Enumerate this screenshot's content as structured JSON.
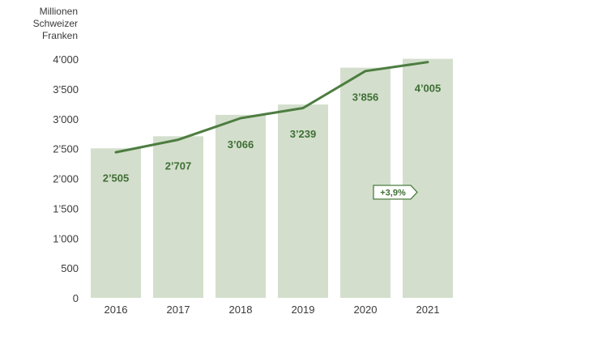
{
  "chart_data": {
    "type": "bar",
    "ylabel": [
      "Millionen",
      "Schweizer",
      "Franken"
    ],
    "categories": [
      "2016",
      "2017",
      "2018",
      "2019",
      "2020",
      "2021"
    ],
    "values": [
      2505,
      2707,
      3066,
      3239,
      3856,
      4005
    ],
    "value_labels": [
      "2’505",
      "2’707",
      "3’066",
      "3’239",
      "3’856",
      "4’005"
    ],
    "line_values": [
      2440,
      2650,
      3010,
      3180,
      3800,
      3950
    ],
    "ylim": [
      0,
      4000
    ],
    "yticks": [
      {
        "value": 0,
        "label": "0"
      },
      {
        "value": 500,
        "label": "500"
      },
      {
        "value": 1000,
        "label": "1’000"
      },
      {
        "value": 1500,
        "label": "1’500"
      },
      {
        "value": 2000,
        "label": "2’000"
      },
      {
        "value": 2500,
        "label": "2’500"
      },
      {
        "value": 3000,
        "label": "3’000"
      },
      {
        "value": 3500,
        "label": "3’500"
      },
      {
        "value": 4000,
        "label": "4’000"
      }
    ],
    "annotation": {
      "text": "+3,9%"
    },
    "grid": false,
    "colors": {
      "bar": "#d3dfcc",
      "line": "#4d7d41",
      "label": "#3f6e35",
      "axis_text": "#3a3a3a",
      "badge_fill": "#ffffff"
    }
  }
}
